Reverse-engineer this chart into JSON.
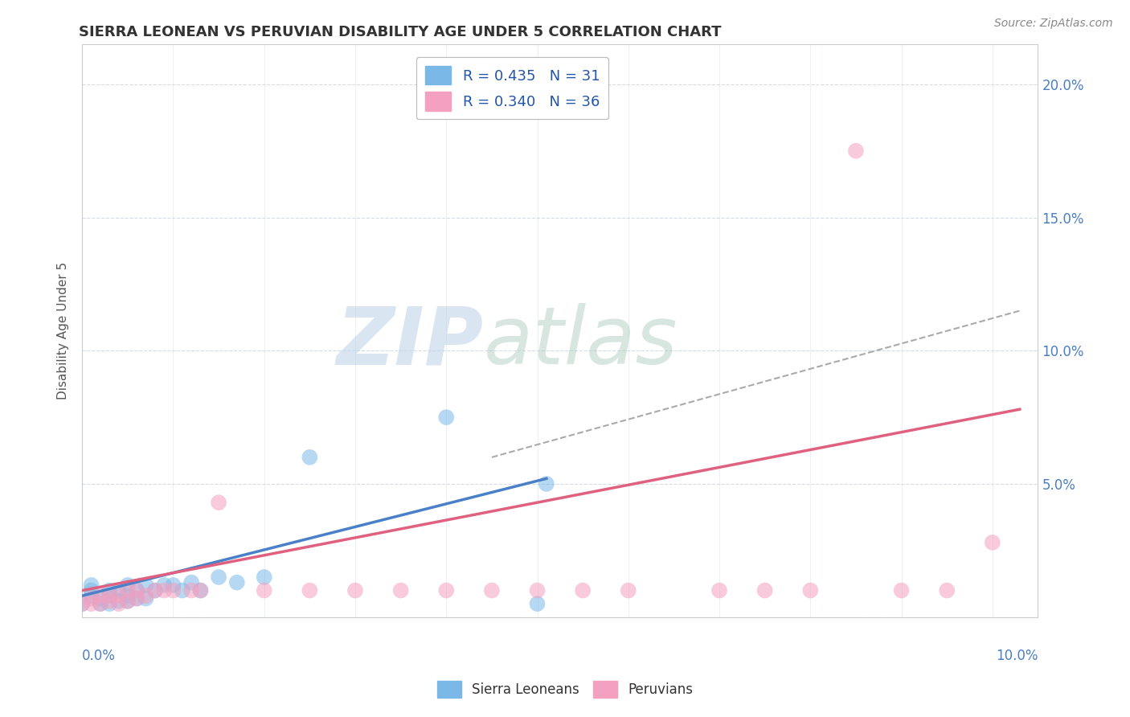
{
  "title": "SIERRA LEONEAN VS PERUVIAN DISABILITY AGE UNDER 5 CORRELATION CHART",
  "source_text": "Source: ZipAtlas.com",
  "ylabel": "Disability Age Under 5",
  "sl_color": "#7ab8e8",
  "pe_color": "#f4a0c0",
  "sl_line_color": "#4a80c8",
  "pe_line_color": "#e06080",
  "trendline_dashed_color": "#aaaaaa",
  "xlim": [
    0.0,
    0.105
  ],
  "ylim": [
    0.0,
    0.215
  ],
  "yticks": [
    0.0,
    0.05,
    0.1,
    0.15,
    0.2
  ],
  "ytick_labels": [
    "",
    "5.0%",
    "10.0%",
    "15.0%",
    "20.0%"
  ],
  "legend_bottom": [
    "Sierra Leoneans",
    "Peruvians"
  ],
  "legend_r_sl": "R = 0.435   N = 31",
  "legend_r_pe": "R = 0.340   N = 36",
  "sl_scatter_x": [
    0.0,
    0.001,
    0.001,
    0.001,
    0.002,
    0.002,
    0.003,
    0.003,
    0.003,
    0.004,
    0.004,
    0.005,
    0.005,
    0.005,
    0.006,
    0.006,
    0.007,
    0.007,
    0.008,
    0.009,
    0.01,
    0.011,
    0.012,
    0.013,
    0.015,
    0.017,
    0.02,
    0.025,
    0.04,
    0.05,
    0.051
  ],
  "sl_scatter_y": [
    0.005,
    0.008,
    0.01,
    0.012,
    0.005,
    0.007,
    0.005,
    0.008,
    0.01,
    0.006,
    0.01,
    0.006,
    0.008,
    0.012,
    0.007,
    0.01,
    0.007,
    0.012,
    0.01,
    0.012,
    0.012,
    0.01,
    0.013,
    0.01,
    0.015,
    0.013,
    0.015,
    0.06,
    0.075,
    0.005,
    0.05
  ],
  "pe_scatter_x": [
    0.0,
    0.001,
    0.001,
    0.002,
    0.002,
    0.003,
    0.003,
    0.004,
    0.004,
    0.005,
    0.005,
    0.006,
    0.006,
    0.007,
    0.008,
    0.009,
    0.01,
    0.012,
    0.013,
    0.015,
    0.02,
    0.025,
    0.03,
    0.035,
    0.04,
    0.045,
    0.05,
    0.055,
    0.06,
    0.07,
    0.075,
    0.08,
    0.085,
    0.09,
    0.095,
    0.1
  ],
  "pe_scatter_y": [
    0.005,
    0.005,
    0.007,
    0.005,
    0.008,
    0.006,
    0.008,
    0.005,
    0.008,
    0.006,
    0.01,
    0.007,
    0.01,
    0.008,
    0.01,
    0.01,
    0.01,
    0.01,
    0.01,
    0.043,
    0.01,
    0.01,
    0.01,
    0.01,
    0.01,
    0.01,
    0.01,
    0.01,
    0.01,
    0.01,
    0.01,
    0.01,
    0.175,
    0.01,
    0.01,
    0.028
  ],
  "sl_trend_x": [
    0.0,
    0.051
  ],
  "sl_trend_y": [
    0.008,
    0.052
  ],
  "pe_trend_x": [
    0.0,
    0.103
  ],
  "pe_trend_y": [
    0.01,
    0.078
  ],
  "dash_trend_x": [
    0.045,
    0.103
  ],
  "dash_trend_y": [
    0.06,
    0.115
  ]
}
